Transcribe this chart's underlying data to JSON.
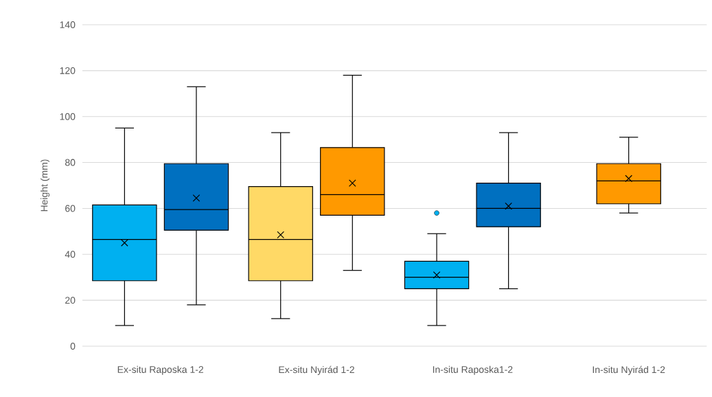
{
  "chart_data": {
    "type": "box",
    "ylabel": "Height (mm)",
    "categories": [
      "Ex-situ Raposka 1-2",
      "Ex-situ Nyirád 1-2",
      "In-situ Raposka1-2",
      "In-situ Nyirád 1-2"
    ],
    "ylim": [
      0,
      140
    ],
    "yticks": [
      0,
      20,
      40,
      60,
      80,
      100,
      120,
      140
    ],
    "grid": "y",
    "marker": "cross",
    "series": [
      {
        "color": "#00b0f0",
        "boxes": [
          {
            "low": 9,
            "q1": 28.5,
            "median": 46.5,
            "q3": 61.5,
            "high": 95,
            "mean": 45
          },
          null,
          {
            "low": 9,
            "q1": 25,
            "median": 30,
            "q3": 37,
            "high": 49,
            "mean": 31,
            "outliers": [
              58
            ]
          },
          null
        ]
      },
      {
        "color": "#0070c0",
        "boxes": [
          {
            "low": 18,
            "q1": 50.5,
            "median": 59.5,
            "q3": 79.5,
            "high": 113,
            "mean": 64.5
          },
          null,
          {
            "low": 25,
            "q1": 52,
            "median": 60,
            "q3": 71,
            "high": 93,
            "mean": 61
          },
          null
        ]
      },
      {
        "color": "#ffd966",
        "boxes": [
          null,
          {
            "low": 12,
            "q1": 28.5,
            "median": 46.5,
            "q3": 69.5,
            "high": 93,
            "mean": 48.5
          },
          null,
          null
        ]
      },
      {
        "color": "#ff9900",
        "boxes": [
          null,
          {
            "low": 33,
            "q1": 57,
            "median": 66,
            "q3": 86.5,
            "high": 118,
            "mean": 71
          },
          null,
          {
            "low": 58,
            "q1": 62,
            "median": 72,
            "q3": 79.5,
            "high": 91,
            "mean": 73
          }
        ]
      }
    ]
  }
}
